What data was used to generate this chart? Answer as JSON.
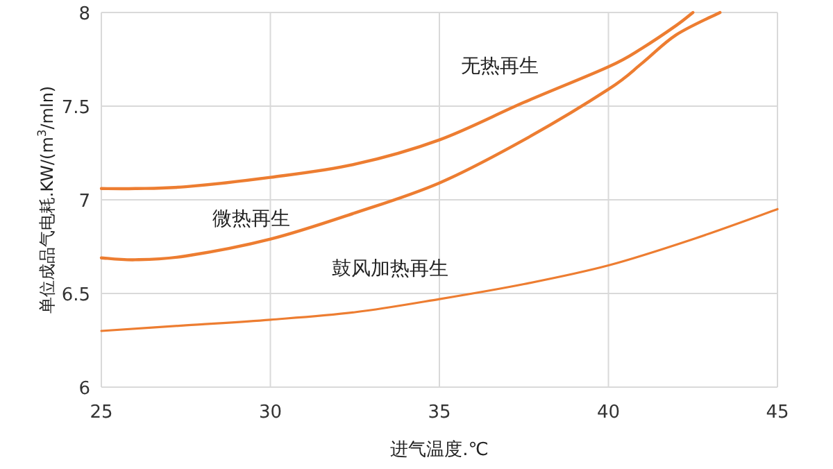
{
  "chart_data": {
    "type": "line",
    "xlabel": "进气温度.℃",
    "ylabel": "单位成品气电耗.KW/(m$^{3}$/mln)",
    "xlim": [
      25,
      45
    ],
    "ylim": [
      6,
      8
    ],
    "xticks": [
      25,
      30,
      35,
      40,
      45
    ],
    "yticks": [
      6,
      6.5,
      7,
      7.5,
      8
    ],
    "grid": true,
    "marker": "none",
    "line_style": "solid",
    "series": [
      {
        "name": "无热再生",
        "color": "#ed7d31",
        "x": [
          25,
          26,
          27.5,
          30,
          32.5,
          35,
          37.5,
          40,
          41,
          42,
          42.5
        ],
        "values": [
          7.06,
          7.06,
          7.07,
          7.12,
          7.19,
          7.32,
          7.52,
          7.71,
          7.81,
          7.93,
          8.0
        ]
      },
      {
        "name": "微热再生",
        "color": "#ed7d31",
        "x": [
          25,
          26,
          27.5,
          30,
          32.5,
          35,
          37.5,
          40,
          41,
          42,
          43.3
        ],
        "values": [
          6.69,
          6.68,
          6.7,
          6.79,
          6.93,
          7.09,
          7.32,
          7.59,
          7.73,
          7.88,
          8.0
        ]
      },
      {
        "name": "鼓风加热再生",
        "color": "#ed7d31",
        "x": [
          25,
          27.5,
          30,
          32.5,
          35,
          37.5,
          40,
          42.5,
          45
        ],
        "values": [
          6.3,
          6.33,
          6.36,
          6.4,
          6.47,
          6.55,
          6.65,
          6.79,
          6.95
        ]
      }
    ]
  }
}
